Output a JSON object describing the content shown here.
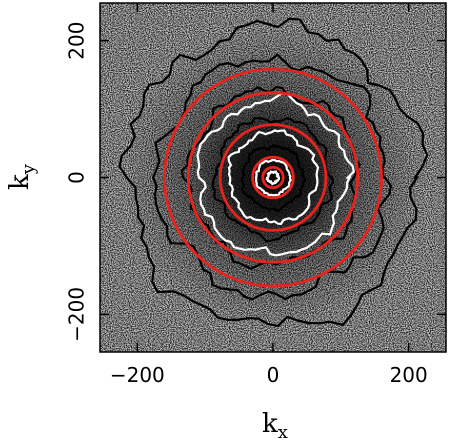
{
  "chart_data": {
    "type": "contour",
    "xlabel": "k",
    "xlabel_sub": "x",
    "ylabel": "k",
    "ylabel_sub": "y",
    "xlim": [
      -255,
      255
    ],
    "ylim": [
      -255,
      255
    ],
    "x_ticks": [
      -200,
      0,
      200
    ],
    "x_tick_labels": [
      "−200",
      "0",
      "200"
    ],
    "y_ticks": [
      -200,
      0,
      200
    ],
    "y_tick_labels": [
      "−200",
      "0",
      "200"
    ],
    "background": "grayscale noise density map",
    "red_circles_radius": [
      160,
      125,
      78,
      30,
      15
    ],
    "black_contours_approx_radius": [
      215,
      170,
      125,
      85,
      45,
      12
    ],
    "white_contours_approx_radius": [
      110,
      65,
      25,
      8
    ],
    "colors": {
      "red": "#e8231d",
      "black": "#000000",
      "white": "#ffffff"
    }
  }
}
